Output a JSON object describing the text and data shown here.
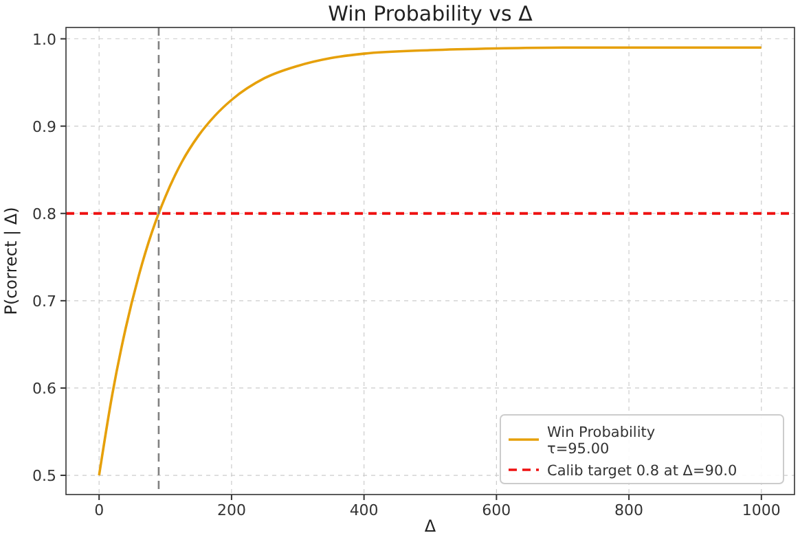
{
  "chart_data": {
    "type": "line",
    "title": "Win Probability vs Δ",
    "xlabel": "Δ",
    "ylabel": "P(correct | Δ)",
    "series": [
      {
        "name": "Win Probability\nτ=95.00",
        "color": "#e6a00a",
        "x": [
          0,
          20,
          40,
          60,
          80,
          90,
          100,
          125,
          150,
          175,
          200,
          250,
          300,
          350,
          400,
          500,
          600,
          700,
          800,
          900,
          1000
        ],
        "values": [
          0.5,
          0.593,
          0.668,
          0.729,
          0.779,
          0.8,
          0.819,
          0.859,
          0.889,
          0.912,
          0.93,
          0.955,
          0.969,
          0.978,
          0.983,
          0.987,
          0.989,
          0.99,
          0.99,
          0.99,
          0.99
        ]
      }
    ],
    "ref_lines": [
      {
        "axis": "x",
        "value": 90,
        "color": "#808080",
        "line_style": "dashed"
      },
      {
        "axis": "y",
        "value": 0.8,
        "label": "Calib target 0.8 at Δ=90.0",
        "color": "#ee1111",
        "line_style": "dashed"
      }
    ],
    "xlim": [
      -50,
      1050
    ],
    "ylim": [
      0.478,
      1.013
    ],
    "xticks": [
      0,
      200,
      400,
      600,
      800,
      1000
    ],
    "yticks": [
      0.5,
      0.6,
      0.7,
      0.8,
      0.9,
      {
        "value": 1,
        "label": "1.0"
      }
    ],
    "grid": true,
    "legend": "bottom right",
    "line_style": "solid",
    "marker": "none"
  }
}
